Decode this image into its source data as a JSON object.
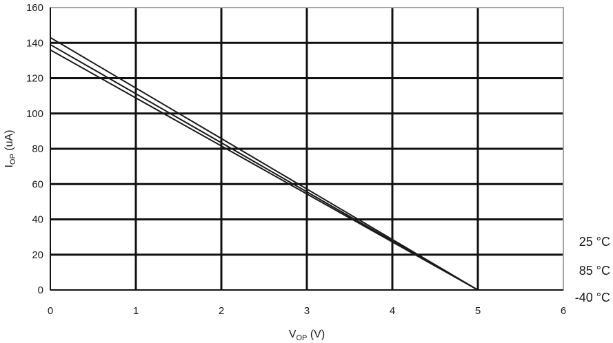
{
  "chart_data": {
    "type": "line",
    "xlabel": {
      "main": "V",
      "sub": "OP",
      "unit": " (V)"
    },
    "ylabel": {
      "main": "I",
      "sub": "OP",
      "unit": " (uA)"
    },
    "xlim": [
      0,
      6
    ],
    "ylim": [
      0,
      160
    ],
    "xticks": [
      "0",
      "1",
      "2",
      "3",
      "4",
      "5",
      "6"
    ],
    "yticks": [
      "0",
      "20",
      "40",
      "60",
      "80",
      "100",
      "120",
      "140",
      "160"
    ],
    "grid": true,
    "legend_position": "right",
    "colors": {
      "line": "#1a1a1a",
      "grid": "#111111",
      "frame": "#a6a6a6"
    },
    "series": [
      {
        "name": "25 °C",
        "x": [
          0,
          5
        ],
        "y": [
          139,
          0
        ]
      },
      {
        "name": "85 °C",
        "x": [
          0,
          5
        ],
        "y": [
          143,
          0
        ]
      },
      {
        "name": "-40 °C",
        "x": [
          0,
          5
        ],
        "y": [
          136,
          0
        ]
      }
    ],
    "legend_order": [
      "25 °C",
      "85 °C",
      "-40 °C"
    ]
  }
}
